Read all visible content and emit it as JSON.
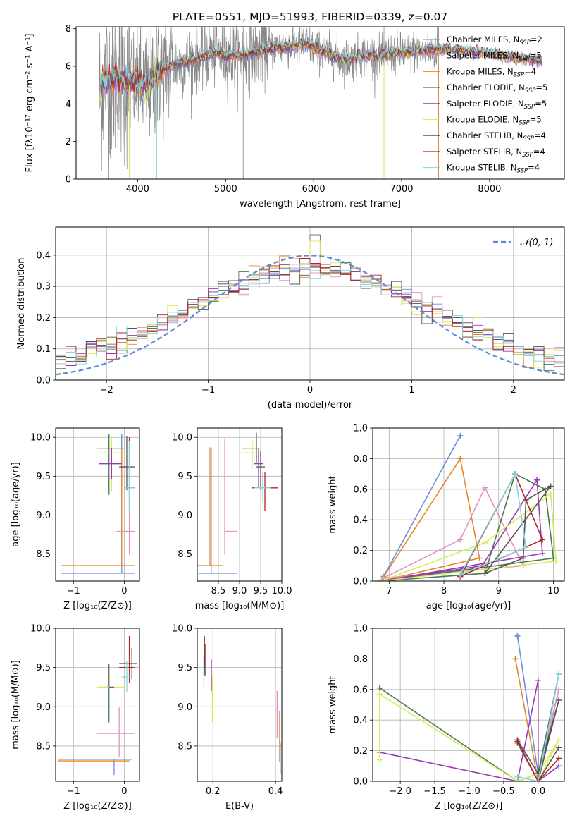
{
  "figure": {
    "title": "PLATE=0551, MJD=51993, FIBERID=0339, z=0.07"
  },
  "colors": {
    "chabrier_miles": "#6a8fd6",
    "salpeter_miles": "#e58fc5",
    "kroupa_miles": "#e5862d",
    "chabrier_elodie": "#4a7a55",
    "salpeter_elodie": "#9a37b5",
    "kroupa_elodie": "#d8ee55",
    "chabrier_stelib": "#555555",
    "salpeter_stelib": "#b22222",
    "kroupa_stelib": "#86d6e0",
    "data": "#888888",
    "normal": "#5b87d8"
  },
  "chart_data": [
    {
      "id": "spectrum",
      "type": "line",
      "title": "PLATE=0551, MJD=51993, FIBERID=0339, z=0.07",
      "xlabel": "wavelength [Angstrom, rest frame]",
      "ylabel": "Flux [fλ10⁻¹⁷ erg cm⁻² s⁻¹ A⁻¹]",
      "xlim": [
        3300,
        8850
      ],
      "ylim": [
        0,
        8.1
      ],
      "xticks": [
        4000,
        5000,
        6000,
        7000,
        8000
      ],
      "yticks": [
        0,
        2,
        4,
        6,
        8
      ],
      "grid": false,
      "legend_position": "right",
      "legend": [
        {
          "key": "chabrier_miles",
          "label": "Chabrier MILES, N",
          "sub": "SSP",
          "suffix": "=2"
        },
        {
          "key": "salpeter_miles",
          "label": "Salpeter MILES, N",
          "sub": "SSP",
          "suffix": "=5"
        },
        {
          "key": "kroupa_miles",
          "label": "Kroupa MILES, N",
          "sub": "SSP",
          "suffix": "=4"
        },
        {
          "key": "chabrier_elodie",
          "label": "Chabrier ELODIE, N",
          "sub": "SSP",
          "suffix": "=5"
        },
        {
          "key": "salpeter_elodie",
          "label": "Salpeter ELODIE, N",
          "sub": "SSP",
          "suffix": "=5"
        },
        {
          "key": "kroupa_elodie",
          "label": "Kroupa ELODIE, N",
          "sub": "SSP",
          "suffix": "=5"
        },
        {
          "key": "chabrier_stelib",
          "label": "Chabrier STELIB, N",
          "sub": "SSP",
          "suffix": "=4"
        },
        {
          "key": "salpeter_stelib",
          "label": "Salpeter STELIB, N",
          "sub": "SSP",
          "suffix": "=4"
        },
        {
          "key": "kroupa_stelib",
          "label": "Kroupa STELIB, N",
          "sub": "SSP",
          "suffix": "=4"
        }
      ],
      "continuum": {
        "x": [
          3560,
          3600,
          3700,
          3800,
          3900,
          4000,
          4100,
          4200,
          4300,
          4400,
          4500,
          4600,
          4700,
          4800,
          4900,
          5000,
          5100,
          5200,
          5300,
          5400,
          5500,
          5600,
          5700,
          5800,
          5900,
          6000,
          6100,
          6200,
          6300,
          6400,
          6500,
          6600,
          6700,
          6800,
          6900,
          7000,
          7200,
          7400,
          7600,
          7800,
          8000,
          8200,
          8400,
          8600,
          8800
        ],
        "y": [
          4.5,
          5.2,
          5.3,
          5.3,
          5.1,
          5.2,
          4.8,
          5.5,
          5.8,
          6.1,
          6.2,
          6.3,
          6.4,
          6.6,
          6.7,
          6.5,
          6.6,
          6.6,
          6.7,
          6.8,
          6.9,
          7.0,
          7.0,
          7.1,
          7.2,
          7.0,
          6.8,
          6.6,
          6.4,
          6.3,
          6.5,
          6.6,
          6.5,
          6.6,
          6.7,
          6.7,
          6.8,
          6.9,
          6.9,
          6.8,
          6.7,
          6.5,
          6.4,
          6.3,
          6.2
        ]
      }
    },
    {
      "id": "residuals",
      "type": "step",
      "xlabel": "(data-model)/error",
      "ylabel": "Normed distribution",
      "xlim": [
        -2.5,
        2.5
      ],
      "ylim": [
        0,
        0.49
      ],
      "xticks": [
        -2,
        -1,
        0,
        1,
        2
      ],
      "yticks": [
        0.0,
        0.1,
        0.2,
        0.3,
        0.4
      ],
      "grid": true,
      "legend_position": "top-right",
      "normal_label": "𝒩(0, 1)",
      "bins": 50
    },
    {
      "id": "age_vs_z",
      "type": "errorbar",
      "xlabel": "Z [log₁₀(Z/Z⊙)]",
      "ylabel": "age  [log₁₀(age/yr)]",
      "xlim": [
        -1.35,
        0.3
      ],
      "ylim": [
        8.15,
        10.12
      ],
      "xticks": [
        -1,
        0
      ],
      "yticks": [
        8.5,
        9.0,
        9.5,
        10.0
      ],
      "grid": true,
      "points": [
        {
          "c": "chabrier_miles",
          "x": -0.05,
          "xerr": [
            1.2,
            0.25
          ],
          "y": 8.25,
          "yerr": [
            0.0,
            1.8
          ]
        },
        {
          "c": "kroupa_miles",
          "x": -0.05,
          "xerr": [
            1.2,
            0.25
          ],
          "y": 8.35,
          "yerr": [
            0.0,
            1.5
          ]
        },
        {
          "c": "salpeter_miles",
          "x": 0.1,
          "xerr": [
            0.25,
            0.1
          ],
          "y": 8.79,
          "yerr": [
            0.3,
            1.2
          ]
        },
        {
          "c": "chabrier_elodie",
          "x": -0.3,
          "xerr": [
            0.25,
            0.3
          ],
          "y": 9.86,
          "yerr": [
            0.6,
            0.18
          ]
        },
        {
          "c": "kroupa_elodie",
          "x": -0.25,
          "xerr": [
            0.25,
            0.25
          ],
          "y": 9.8,
          "yerr": [
            0.5,
            0.22
          ]
        },
        {
          "c": "salpeter_elodie",
          "x": -0.25,
          "xerr": [
            0.25,
            0.2
          ],
          "y": 9.66,
          "yerr": [
            0.2,
            0.2
          ]
        },
        {
          "c": "chabrier_stelib",
          "x": 0.05,
          "xerr": [
            0.15,
            0.15
          ],
          "y": 9.62,
          "yerr": [
            0.3,
            0.4
          ]
        },
        {
          "c": "salpeter_stelib",
          "x": 0.1,
          "xerr": [
            0.1,
            0.1
          ],
          "y": 9.35,
          "yerr": [
            0.3,
            0.65
          ]
        },
        {
          "c": "kroupa_stelib",
          "x": 0.1,
          "xerr": [
            0.1,
            0.1
          ],
          "y": 9.35,
          "yerr": [
            0.3,
            0.6
          ]
        }
      ]
    },
    {
      "id": "age_vs_mass",
      "type": "errorbar",
      "xlabel": "mass [log₁₀(M/M⊙)]",
      "ylabel": "",
      "xlim": [
        8.0,
        10.0
      ],
      "ylim": [
        8.15,
        10.12
      ],
      "xticks": [
        8.5,
        9.0,
        9.5,
        10.0
      ],
      "yticks": [
        8.5,
        9.0,
        9.5,
        10.0
      ],
      "grid": true,
      "points": [
        {
          "c": "chabrier_miles",
          "x": 8.33,
          "xerr": [
            0.3,
            0.6
          ],
          "y": 8.25,
          "yerr": [
            0.0,
            1.62
          ]
        },
        {
          "c": "kroupa_miles",
          "x": 8.3,
          "xerr": [
            0.3,
            0.3
          ],
          "y": 8.35,
          "yerr": [
            0.0,
            1.52
          ]
        },
        {
          "c": "salpeter_miles",
          "x": 8.65,
          "xerr": [
            0.0,
            0.3
          ],
          "y": 8.79,
          "yerr": [
            0.3,
            1.2
          ]
        },
        {
          "c": "chabrier_elodie",
          "x": 9.4,
          "xerr": [
            0.35,
            0.05
          ],
          "y": 9.86,
          "yerr": [
            0.2,
            0.2
          ]
        },
        {
          "c": "kroupa_elodie",
          "x": 9.3,
          "xerr": [
            0.3,
            0.15
          ],
          "y": 9.8,
          "yerr": [
            0.2,
            0.15
          ]
        },
        {
          "c": "salpeter_elodie",
          "x": 9.45,
          "xerr": [
            0.1,
            0.1
          ],
          "y": 9.66,
          "yerr": [
            0.3,
            0.2
          ]
        },
        {
          "c": "chabrier_stelib",
          "x": 9.5,
          "xerr": [
            0.1,
            0.1
          ],
          "y": 9.62,
          "yerr": [
            0.3,
            0.2
          ]
        },
        {
          "c": "salpeter_stelib",
          "x": 9.6,
          "xerr": [
            0.3,
            0.3
          ],
          "y": 9.35,
          "yerr": [
            0.3,
            0.2
          ]
        },
        {
          "c": "kroupa_stelib",
          "x": 9.55,
          "xerr": [
            0.2,
            0.2
          ],
          "y": 9.35,
          "yerr": [
            0.2,
            0.2
          ]
        }
      ]
    },
    {
      "id": "weight_vs_age",
      "type": "line",
      "xlabel": "age  [log₁₀(age/yr)]",
      "ylabel": "mass weight",
      "xlim": [
        6.7,
        10.2
      ],
      "ylim": [
        0,
        1.0
      ],
      "xticks": [
        7,
        8,
        9,
        10
      ],
      "yticks": [
        0.0,
        0.2,
        0.4,
        0.6,
        0.8,
        1.0
      ],
      "grid": true,
      "series": [
        {
          "c": "chabrier_miles",
          "x": [
            6.9,
            8.3,
            6.9
          ],
          "y": [
            0.03,
            0.95,
            0.03
          ]
        },
        {
          "c": "kroupa_miles",
          "x": [
            6.85,
            8.3,
            8.65,
            6.85
          ],
          "y": [
            0.0,
            0.8,
            0.15,
            0.0
          ]
        },
        {
          "c": "salpeter_miles",
          "x": [
            6.9,
            8.3,
            8.75,
            9.45,
            6.9
          ],
          "y": [
            0.02,
            0.27,
            0.61,
            0.1,
            0.02
          ]
        },
        {
          "c": "chabrier_elodie",
          "x": [
            6.85,
            8.75,
            9.3,
            9.85,
            10.0,
            6.85
          ],
          "y": [
            0.0,
            0.05,
            0.7,
            0.6,
            0.15,
            0.0
          ]
        },
        {
          "c": "salpeter_elodie",
          "x": [
            6.85,
            8.7,
            9.7,
            9.8,
            6.85
          ],
          "y": [
            0.0,
            0.1,
            0.66,
            0.18,
            0.0
          ]
        },
        {
          "c": "kroupa_elodie",
          "x": [
            6.85,
            8.75,
            9.95,
            10.05,
            6.85
          ],
          "y": [
            0.0,
            0.25,
            0.57,
            0.13,
            0.0
          ]
        },
        {
          "c": "chabrier_stelib",
          "x": [
            8.75,
            9.45,
            9.5,
            9.95,
            8.75
          ],
          "y": [
            0.05,
            0.15,
            0.53,
            0.62,
            0.05
          ]
        },
        {
          "c": "salpeter_stelib",
          "x": [
            8.3,
            9.3,
            9.8,
            8.3
          ],
          "y": [
            0.03,
            0.7,
            0.27,
            0.03
          ]
        },
        {
          "c": "kroupa_stelib",
          "x": [
            8.3,
            9.3,
            9.5,
            8.3
          ],
          "y": [
            0.04,
            0.7,
            0.22,
            0.04
          ]
        }
      ]
    },
    {
      "id": "mass_vs_z",
      "type": "errorbar",
      "xlabel": "Z [log₁₀(Z/Z⊙)]",
      "ylabel": "mass [log₁₀(M/M⊙)]",
      "xlim": [
        -1.35,
        0.3
      ],
      "ylim": [
        8.05,
        10.0
      ],
      "xticks": [
        -1,
        0
      ],
      "yticks": [
        8.5,
        9.0,
        9.5,
        10.0
      ],
      "grid": true,
      "points": [
        {
          "c": "chabrier_miles",
          "x": -0.2,
          "xerr": [
            1.1,
            0.35
          ],
          "y": 8.33,
          "yerr": [
            0.2,
            0.0
          ]
        },
        {
          "c": "kroupa_miles",
          "x": -0.2,
          "xerr": [
            1.1,
            0.3
          ],
          "y": 8.31,
          "yerr": [
            0.0,
            0.0
          ]
        },
        {
          "c": "salpeter_miles",
          "x": -0.1,
          "xerr": [
            0.45,
            0.3
          ],
          "y": 8.66,
          "yerr": [
            0.3,
            0.33
          ]
        },
        {
          "c": "chabrier_elodie",
          "x": -0.3,
          "xerr": [
            0.1,
            0.05
          ],
          "y": 9.25,
          "yerr": [
            0.45,
            0.3
          ]
        },
        {
          "c": "kroupa_elodie",
          "x": -0.25,
          "xerr": [
            0.3,
            0.25
          ],
          "y": 9.25,
          "yerr": [
            0.0,
            0.0
          ]
        },
        {
          "c": "salpeter_elodie",
          "x": -0.25,
          "xerr": [
            0.05,
            0.05
          ],
          "y": 9.25,
          "yerr": [
            0.0,
            0.0
          ]
        },
        {
          "c": "chabrier_stelib",
          "x": 0.15,
          "xerr": [
            0.25,
            0.1
          ],
          "y": 9.55,
          "yerr": [
            0.2,
            0.2
          ]
        },
        {
          "c": "salpeter_stelib",
          "x": 0.1,
          "xerr": [
            0.2,
            0.1
          ],
          "y": 9.5,
          "yerr": [
            0.2,
            0.4
          ]
        },
        {
          "c": "kroupa_stelib",
          "x": 0.05,
          "xerr": [
            0.1,
            0.1
          ],
          "y": 9.38,
          "yerr": [
            0.2,
            0.2
          ]
        }
      ]
    },
    {
      "id": "mass_vs_ebv",
      "type": "errorbar",
      "xlabel": "E(B-V)",
      "ylabel": "",
      "xlim": [
        0.15,
        0.42
      ],
      "ylim": [
        8.05,
        10.0
      ],
      "xticks": [
        0.2,
        0.4
      ],
      "yticks": [
        8.5,
        9.0,
        9.5,
        10.0
      ],
      "grid": true,
      "points": [
        {
          "c": "chabrier_miles",
          "x": 0.415,
          "xerr": [
            0.0,
            0.0
          ],
          "y": 8.25,
          "yerr": [
            0.1,
            0.3
          ]
        },
        {
          "c": "kroupa_miles",
          "x": 0.413,
          "xerr": [
            0.0,
            0.0
          ],
          "y": 8.55,
          "yerr": [
            0.25,
            0.4
          ]
        },
        {
          "c": "salpeter_miles",
          "x": 0.405,
          "xerr": [
            0.0,
            0.0
          ],
          "y": 8.9,
          "yerr": [
            0.3,
            0.3
          ]
        },
        {
          "c": "chabrier_elodie",
          "x": 0.172,
          "xerr": [
            0.0,
            0.0
          ],
          "y": 9.55,
          "yerr": [
            0.15,
            0.25
          ]
        },
        {
          "c": "kroupa_elodie",
          "x": 0.198,
          "xerr": [
            0.0,
            0.0
          ],
          "y": 9.1,
          "yerr": [
            0.3,
            0.3
          ]
        },
        {
          "c": "salpeter_elodie",
          "x": 0.195,
          "xerr": [
            0.0,
            0.0
          ],
          "y": 9.4,
          "yerr": [
            0.2,
            0.2
          ]
        },
        {
          "c": "chabrier_stelib",
          "x": 0.175,
          "xerr": [
            0.0,
            0.0
          ],
          "y": 9.6,
          "yerr": [
            0.2,
            0.2
          ]
        },
        {
          "c": "salpeter_stelib",
          "x": 0.173,
          "xerr": [
            0.0,
            0.0
          ],
          "y": 9.7,
          "yerr": [
            0.2,
            0.2
          ]
        },
        {
          "c": "kroupa_stelib",
          "x": 0.171,
          "xerr": [
            0.0,
            0.0
          ],
          "y": 9.45,
          "yerr": [
            0.2,
            0.2
          ]
        }
      ]
    },
    {
      "id": "weight_vs_z",
      "type": "line",
      "xlabel": "Z [log₁₀(Z/Z⊙)]",
      "ylabel": "mass weight",
      "xlim": [
        -2.4,
        0.38
      ],
      "ylim": [
        0,
        1.0
      ],
      "xticks": [
        -2.0,
        -1.5,
        -1.0,
        -0.5,
        0.0
      ],
      "yticks": [
        0.0,
        0.2,
        0.4,
        0.6,
        0.8,
        1.0
      ],
      "grid": true,
      "series": [
        {
          "c": "chabrier_miles",
          "x": [
            -0.3,
            0.0,
            -0.3
          ],
          "y": [
            0.95,
            0.05,
            0.95
          ]
        },
        {
          "c": "kroupa_miles",
          "x": [
            -0.33,
            0.0,
            -0.33
          ],
          "y": [
            0.8,
            0.0,
            0.8
          ]
        },
        {
          "c": "salpeter_miles",
          "x": [
            -0.3,
            0.0,
            0.3,
            0.0,
            -0.3
          ],
          "y": [
            0.0,
            0.05,
            0.6,
            0.0,
            0.27
          ]
        },
        {
          "c": "chabrier_elodie",
          "x": [
            -2.3,
            -0.3,
            0.0,
            0.3,
            0.0,
            -0.3
          ],
          "y": [
            0.61,
            0.0,
            0.05,
            0.7,
            0.0,
            0.25
          ]
        },
        {
          "c": "salpeter_elodie",
          "x": [
            -2.3,
            -0.3,
            0.0,
            0.0,
            0.3,
            0.0
          ],
          "y": [
            0.19,
            0.0,
            0.66,
            0.0,
            0.1,
            0.0
          ]
        },
        {
          "c": "kroupa_elodie",
          "x": [
            -2.3,
            -2.3,
            -0.3,
            0.0,
            0.3,
            0.0
          ],
          "y": [
            0.14,
            0.57,
            0.0,
            0.05,
            0.27,
            0.0
          ]
        },
        {
          "c": "chabrier_stelib",
          "x": [
            -0.3,
            0.0,
            0.3,
            0.0,
            0.3
          ],
          "y": [
            0.27,
            0.05,
            0.53,
            0.0,
            0.22
          ]
        },
        {
          "c": "salpeter_stelib",
          "x": [
            -0.3,
            0.0,
            0.3
          ],
          "y": [
            0.26,
            0.0,
            0.15
          ]
        },
        {
          "c": "kroupa_stelib",
          "x": [
            -0.3,
            0.0,
            0.3
          ],
          "y": [
            0.03,
            0.0,
            0.7
          ]
        }
      ]
    }
  ]
}
